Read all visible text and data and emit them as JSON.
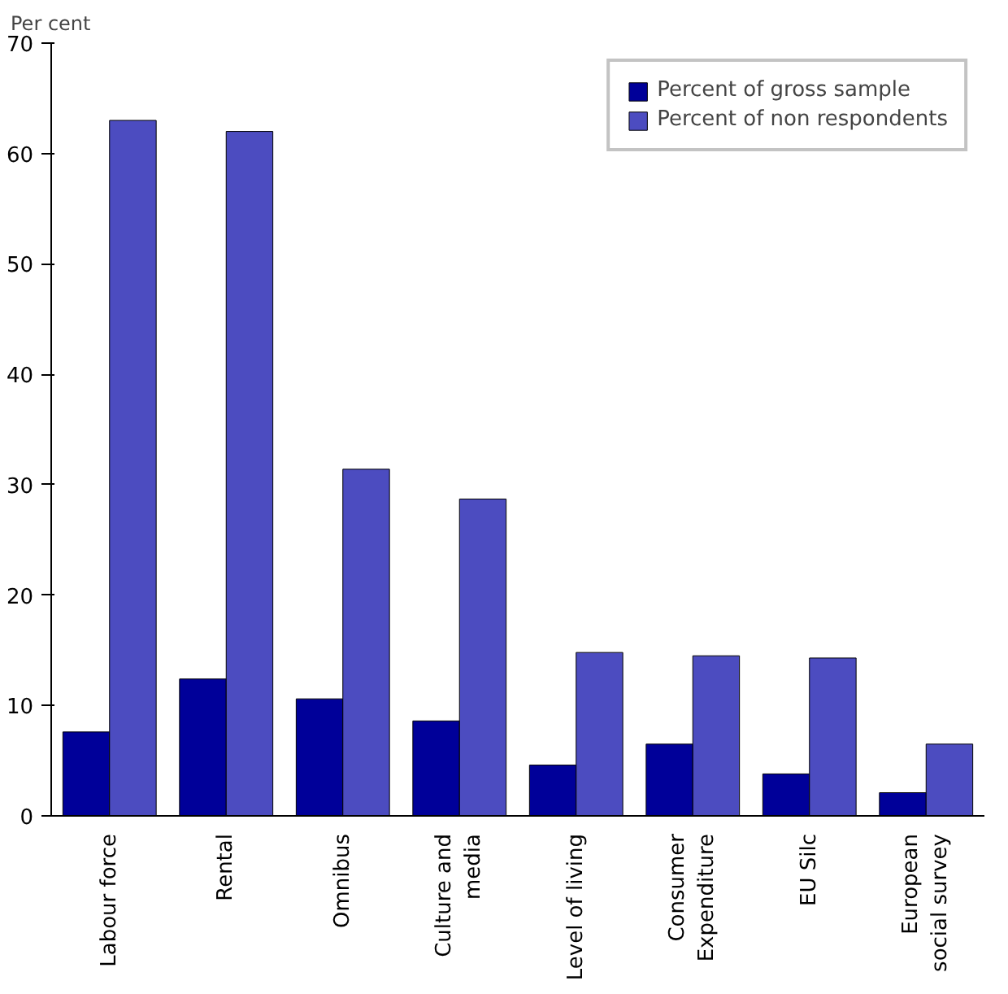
{
  "chart_data": {
    "type": "bar",
    "ylabel": "Per cent",
    "categories": [
      "Labour force",
      "Rental",
      "Omnibus",
      "Culture and\nmedia",
      "Level of living",
      "Consumer\nExpenditure",
      "EU Silc",
      "European\nsocial survey"
    ],
    "series": [
      {
        "name": "Percent of gross sample",
        "color": "#000099",
        "values": [
          7.6,
          12.4,
          10.6,
          8.6,
          4.6,
          6.5,
          3.8,
          2.1
        ]
      },
      {
        "name": "Percent of non respondents",
        "color": "#4c4cc0",
        "values": [
          63,
          62,
          31.4,
          28.7,
          14.8,
          14.5,
          14.3,
          6.5
        ]
      }
    ],
    "ylim": [
      0,
      70
    ],
    "yticks": [
      0,
      10,
      20,
      30,
      40,
      50,
      60,
      70
    ],
    "grid": false,
    "legend": "top right"
  }
}
